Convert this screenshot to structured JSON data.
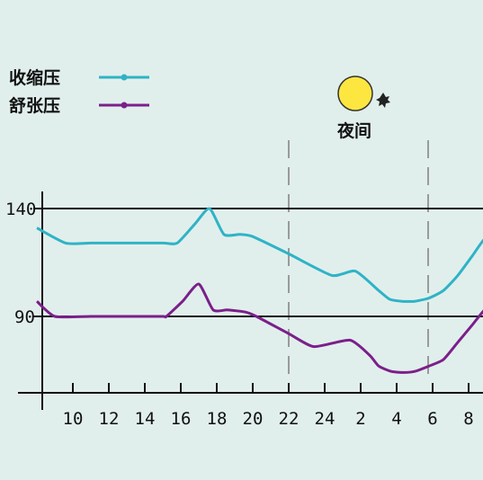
{
  "chart_data": {
    "type": "line",
    "x_tick_labels": [
      "10",
      "12",
      "14",
      "16",
      "18",
      "20",
      "22",
      "24",
      "2",
      "4",
      "6",
      "8"
    ],
    "y_ticks": [
      140,
      90
    ],
    "series": [
      {
        "name": "收缩压",
        "color": "#2fb3c6",
        "points": [
          [
            8.0,
            131
          ],
          [
            9.6,
            124
          ],
          [
            11,
            124
          ],
          [
            13,
            124
          ],
          [
            15,
            124
          ],
          [
            15.8,
            124
          ],
          [
            16.8,
            133
          ],
          [
            17.6,
            140
          ],
          [
            18.4,
            128
          ],
          [
            19.3,
            128
          ],
          [
            20,
            127
          ],
          [
            22,
            119
          ],
          [
            24.4,
            109
          ],
          [
            25.7,
            111
          ],
          [
            27,
            102
          ],
          [
            27.6,
            98
          ],
          [
            28.3,
            97
          ],
          [
            29,
            97
          ],
          [
            29.8,
            98.5
          ],
          [
            30.6,
            102
          ],
          [
            31.4,
            109
          ],
          [
            32.2,
            118
          ],
          [
            33,
            127
          ],
          [
            34.4,
            134
          ]
        ]
      },
      {
        "name": "舒张压",
        "color": "#7b1f8a",
        "points": [
          [
            8.0,
            97
          ],
          [
            9.0,
            90
          ],
          [
            11,
            90
          ],
          [
            13,
            90
          ],
          [
            15,
            90
          ],
          [
            15.2,
            90
          ],
          [
            16.1,
            97
          ],
          [
            17.0,
            105
          ],
          [
            17.8,
            93
          ],
          [
            18.6,
            93
          ],
          [
            19.6,
            92
          ],
          [
            20.2,
            90
          ],
          [
            22,
            82
          ],
          [
            23.4,
            76
          ],
          [
            25.4,
            79
          ],
          [
            26.5,
            72
          ],
          [
            27,
            67
          ],
          [
            27.7,
            64.5
          ],
          [
            28.4,
            64
          ],
          [
            29,
            64.5
          ],
          [
            29.8,
            67
          ],
          [
            30.6,
            70
          ],
          [
            31.4,
            78
          ],
          [
            32.2,
            86
          ],
          [
            33,
            94
          ],
          [
            34.4,
            102
          ]
        ]
      }
    ],
    "legend": [
      {
        "label": "收缩压",
        "color": "#2fb3c6"
      },
      {
        "label": "舒张压",
        "color": "#7b1f8a"
      }
    ],
    "annotation": {
      "label": "夜间",
      "from": 22,
      "to": 30
    },
    "grid": false,
    "legend_placement": "top-left"
  }
}
